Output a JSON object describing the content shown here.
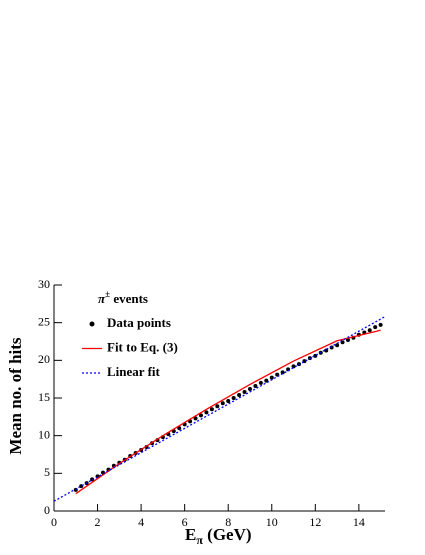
{
  "chart_data": {
    "type": "scatter",
    "legend_title_parts": [
      "π",
      "±",
      " events"
    ],
    "xlabel_parts": [
      "E",
      "π",
      "  (GeV)"
    ],
    "ylabel": "Mean no. of hits",
    "xlim": [
      0,
      15.2
    ],
    "ylim": [
      0,
      30
    ],
    "xticks": [
      0,
      2,
      4,
      6,
      8,
      10,
      12,
      14
    ],
    "yticks": [
      0,
      5,
      10,
      15,
      20,
      25,
      30
    ],
    "series": [
      {
        "name": "Data points",
        "style": "points",
        "color": "#000000",
        "x": [
          1,
          1.25,
          1.5,
          1.75,
          2,
          2.25,
          2.5,
          2.75,
          3,
          3.25,
          3.5,
          3.75,
          4,
          4.25,
          4.5,
          4.75,
          5,
          5.25,
          5.5,
          5.75,
          6,
          6.25,
          6.5,
          6.75,
          7,
          7.25,
          7.5,
          7.75,
          8,
          8.25,
          8.5,
          8.75,
          9,
          9.25,
          9.5,
          9.75,
          10,
          10.25,
          10.5,
          10.75,
          11,
          11.25,
          11.5,
          11.75,
          12,
          12.25,
          12.5,
          12.75,
          13,
          13.25,
          13.5,
          13.75,
          14,
          14.25,
          14.5,
          14.75,
          15
        ],
        "values": [
          2.8,
          3.3,
          3.7,
          4.2,
          4.6,
          5.1,
          5.5,
          6.0,
          6.4,
          6.8,
          7.3,
          7.7,
          8.1,
          8.5,
          9.0,
          9.4,
          9.8,
          10.2,
          10.6,
          11.0,
          11.5,
          11.9,
          12.3,
          12.7,
          13.1,
          13.5,
          13.9,
          14.3,
          14.6,
          15.0,
          15.4,
          15.8,
          16.2,
          16.6,
          17.0,
          17.3,
          17.7,
          18.1,
          18.4,
          18.8,
          19.2,
          19.5,
          19.9,
          20.3,
          20.6,
          21.0,
          21.3,
          21.7,
          22.0,
          22.4,
          22.7,
          23.0,
          23.4,
          23.7,
          24.0,
          24.4,
          24.7
        ]
      },
      {
        "name": "Fit to Eq. (3)",
        "style": "line",
        "color": "#ff0000",
        "x": [
          1,
          3,
          5,
          7,
          9,
          11,
          13,
          15
        ],
        "values": [
          2.3,
          6.3,
          10.0,
          13.5,
          16.8,
          19.9,
          22.6,
          24.0
        ]
      },
      {
        "name": "Linear fit",
        "style": "dotted",
        "color": "#0000ff",
        "x": [
          0,
          15.2
        ],
        "values": [
          1.3,
          25.8
        ]
      }
    ]
  }
}
